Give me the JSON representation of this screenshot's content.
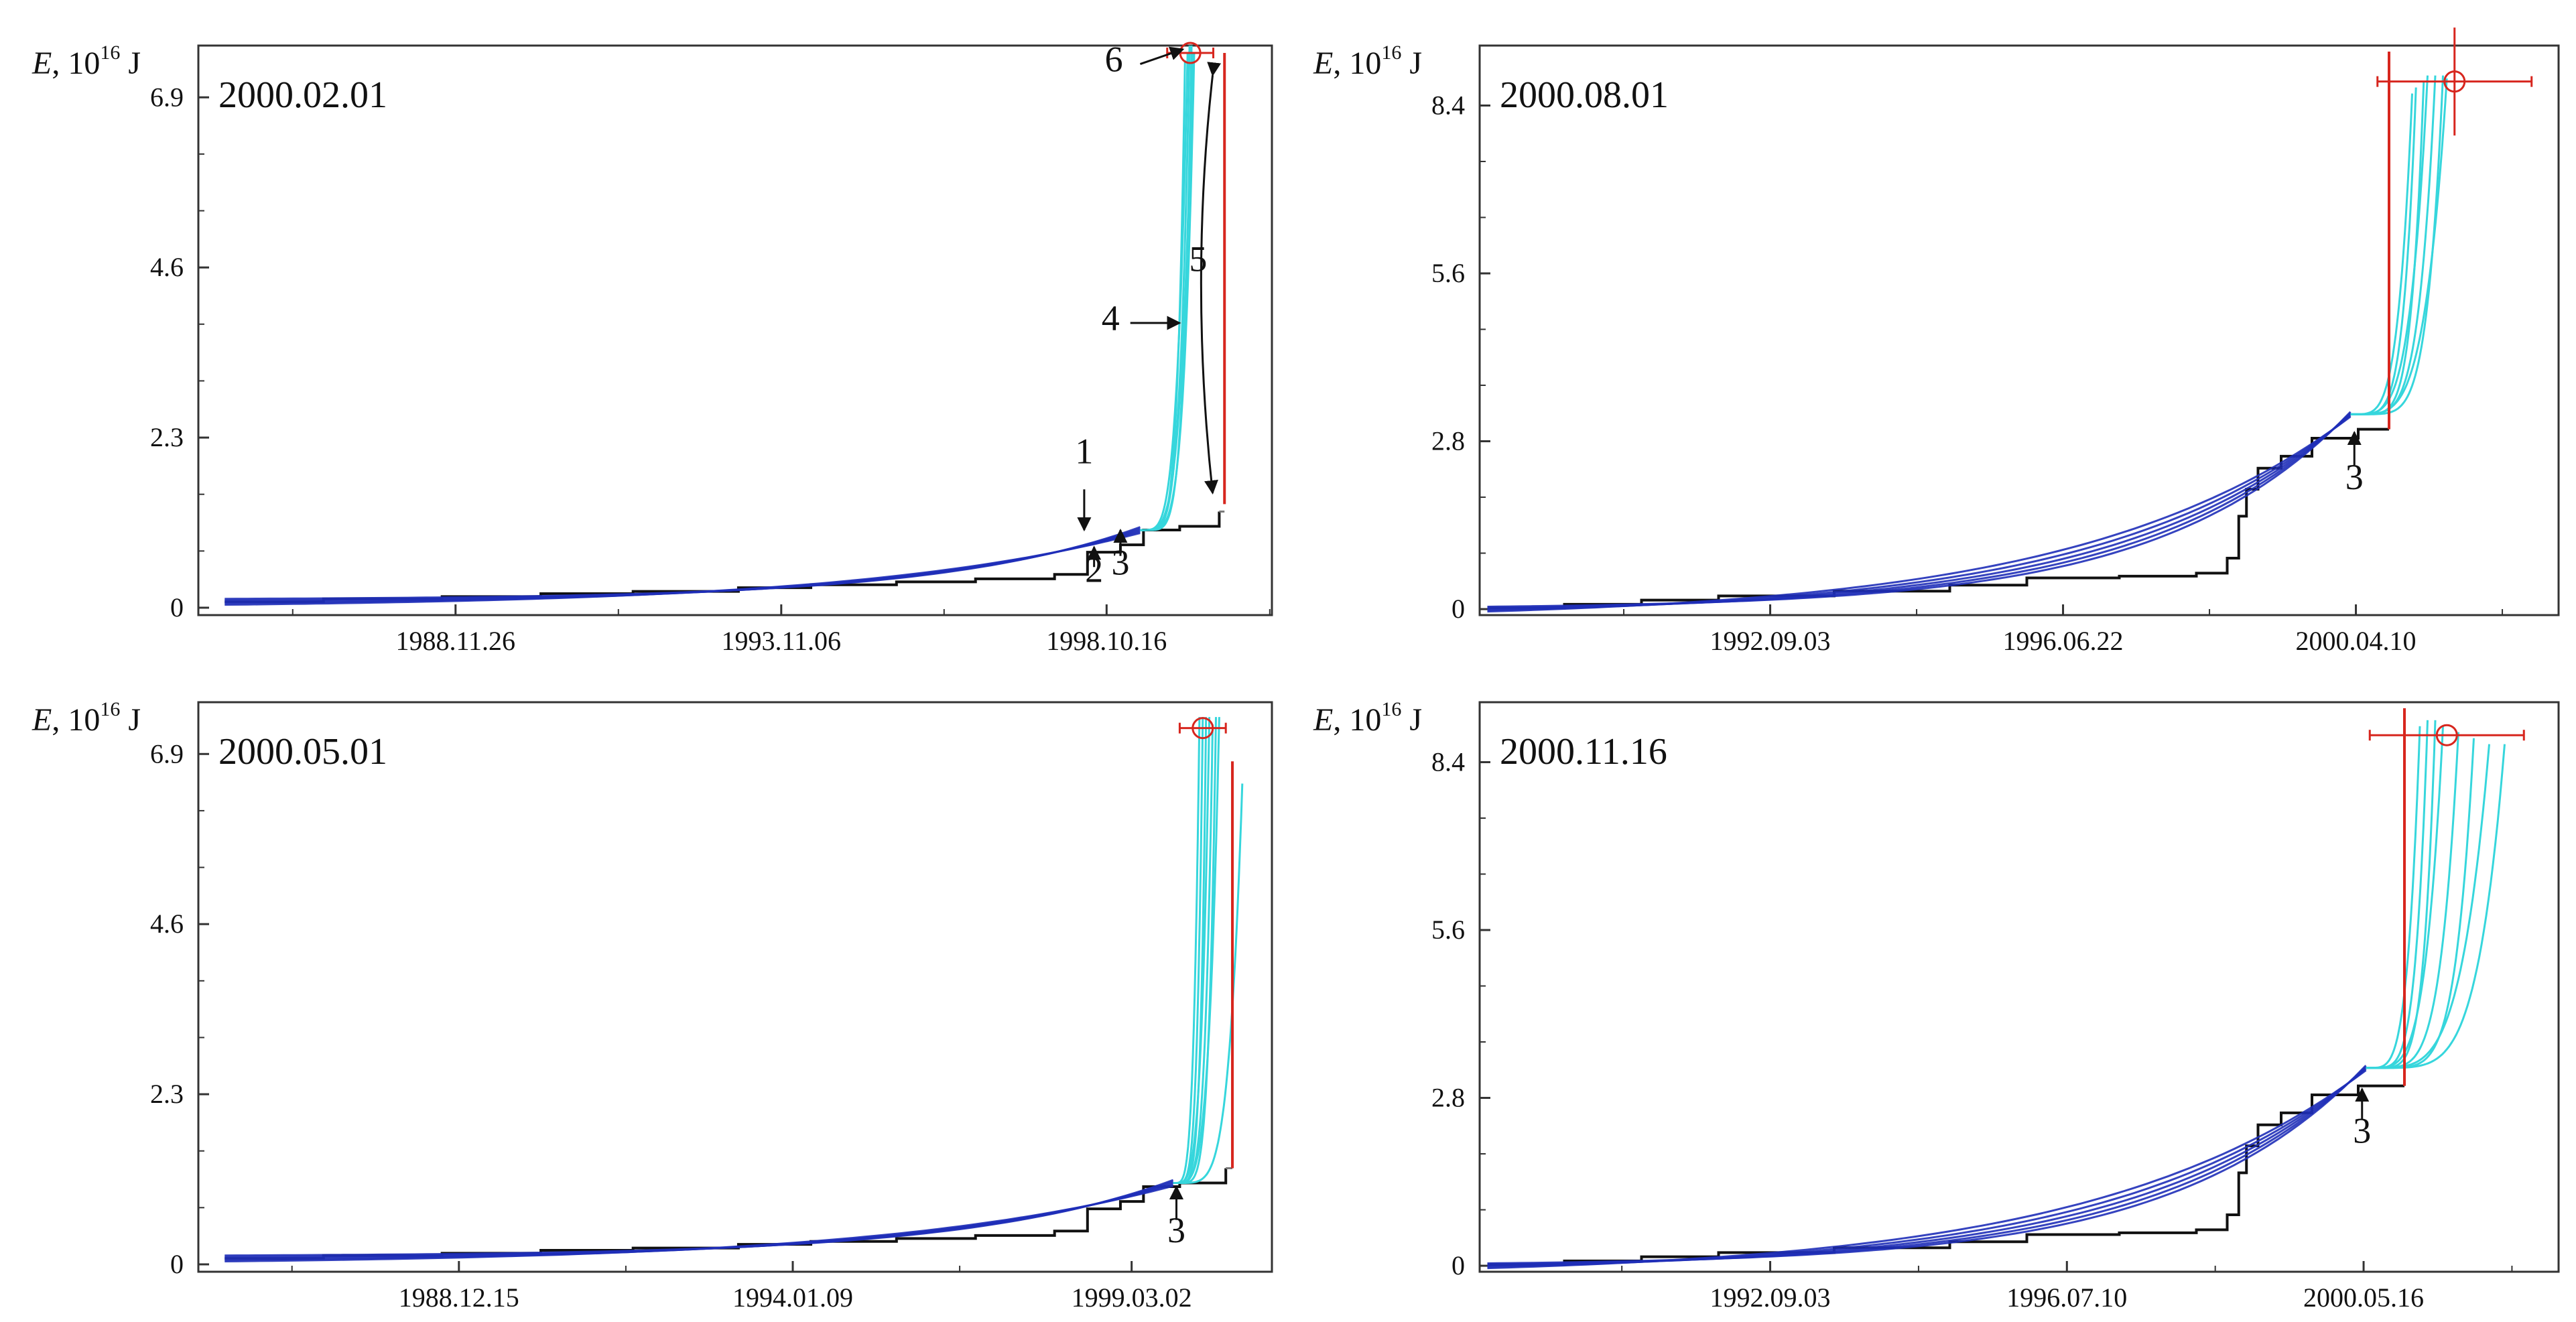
{
  "figure": {
    "description_type": "Four panels of cumulative released energy versus time with model approximation curves",
    "colors": {
      "observed": "#111111",
      "fit_early": "#1f2fb8",
      "fit_late": "#36d6dc",
      "event": "#d7261e",
      "axes": "#333333",
      "secondary_step": "#7a7a7a"
    }
  },
  "chart_data": [
    {
      "id": "p1",
      "type": "line",
      "panel_date": "2000.02.01",
      "ylabel": {
        "var": "E",
        "sep": ", ",
        "base": "10",
        "exp": "16",
        "unit": " J"
      },
      "yticks": [
        0,
        2.3,
        4.6,
        6.9
      ],
      "ytick_labels": [
        "0",
        "2.3",
        "4.6",
        "6.9"
      ],
      "ylim": [
        -0.1,
        7.6
      ],
      "xlim": [
        1985.0,
        2001.3
      ],
      "xticks": [
        1988.905,
        1993.85,
        1998.79
      ],
      "xtick_labels": [
        "1988.11.26",
        "1993.11.06",
        "1998.10.16"
      ],
      "observed_steps": [
        [
          1985.4,
          0.08
        ],
        [
          1986.9,
          0.12
        ],
        [
          1988.7,
          0.15
        ],
        [
          1990.2,
          0.19
        ],
        [
          1991.6,
          0.22
        ],
        [
          1993.2,
          0.27
        ],
        [
          1994.3,
          0.31
        ],
        [
          1995.6,
          0.35
        ],
        [
          1996.8,
          0.39
        ],
        [
          1998.0,
          0.45
        ],
        [
          1998.5,
          0.75
        ],
        [
          1999.0,
          0.85
        ],
        [
          1999.35,
          1.05
        ],
        [
          1999.9,
          1.1
        ],
        [
          2000.5,
          1.3
        ]
      ],
      "fit_start": 1985.4,
      "fit_end": 1999.3,
      "fit_start_value": 0.08,
      "fit_end_value": 1.05,
      "projections": [
        {
          "t_end": 2000.02,
          "e_end": 7.5
        },
        {
          "t_end": 2000.05,
          "e_end": 7.6
        },
        {
          "t_end": 2000.08,
          "e_end": 7.6
        },
        {
          "t_end": 2000.1,
          "e_end": 7.5
        },
        {
          "t_end": 2000.12,
          "e_end": 7.5
        },
        {
          "t_end": 1999.98,
          "e_end": 7.4
        }
      ],
      "event": {
        "t": 2000.06,
        "e": 7.5,
        "t_err": 0.35,
        "e_err": 0,
        "red_line_t": 2000.58,
        "red_line_top": 7.5,
        "red_line_bottom": 1.4
      },
      "annotations": [
        {
          "label": "1",
          "tx": 1998.45,
          "ty": 1.95,
          "ax": 1998.45,
          "ay": 1.6,
          "bx": 1998.45,
          "by": 1.05
        },
        {
          "label": "2",
          "tx": 1998.6,
          "ty": 0.35,
          "ax": 1998.6,
          "ay": 0.55,
          "bx": 1998.6,
          "by": 0.82
        },
        {
          "label": "3",
          "tx": 1999.0,
          "ty": 0.45,
          "ax": 1999.0,
          "ay": 0.7,
          "bx": 1999.0,
          "by": 1.05
        },
        {
          "label": "4",
          "tx": 1998.85,
          "ty": 3.75,
          "ax": 1999.15,
          "ay": 3.85,
          "bx": 1999.9,
          "by": 3.85
        },
        {
          "label": "5",
          "tx": 2000.18,
          "ty": 4.55,
          "ax": null,
          "ay": null,
          "bx": null,
          "by": null
        },
        {
          "label": "6",
          "tx": 1998.9,
          "ty": 7.25,
          "ax": 1999.3,
          "ay": 7.35,
          "bx": 1999.95,
          "by": 7.55
        }
      ]
    },
    {
      "id": "p2",
      "type": "line",
      "panel_date": "2000.08.01",
      "ylabel": {
        "var": "E",
        "sep": ", ",
        "base": "10",
        "exp": "16",
        "unit": " J"
      },
      "yticks": [
        0,
        2.8,
        5.6,
        8.4
      ],
      "ytick_labels": [
        "0",
        "2.8",
        "5.6",
        "8.4"
      ],
      "ylim": [
        -0.1,
        9.4
      ],
      "xlim": [
        1988.9,
        2002.9
      ],
      "xticks": [
        1992.67,
        1996.47,
        2000.27
      ],
      "xtick_labels": [
        "1992.09.03",
        "1996.06.22",
        "2000.04.10"
      ],
      "observed_steps": [
        [
          1989.0,
          0.02
        ],
        [
          1990.0,
          0.08
        ],
        [
          1991.0,
          0.15
        ],
        [
          1992.0,
          0.22
        ],
        [
          1993.5,
          0.3
        ],
        [
          1995.0,
          0.4
        ],
        [
          1996.0,
          0.52
        ],
        [
          1997.2,
          0.55
        ],
        [
          1998.2,
          0.6
        ],
        [
          1998.6,
          0.85
        ],
        [
          1998.75,
          1.55
        ],
        [
          1998.85,
          2.0
        ],
        [
          1999.0,
          2.35
        ],
        [
          1999.3,
          2.55
        ],
        [
          1999.7,
          2.85
        ],
        [
          2000.3,
          3.0
        ],
        [
          2000.7,
          3.0
        ]
      ],
      "fit_start": 1989.0,
      "fit_end": 2000.2,
      "fit_start_value": 0.0,
      "fit_end_value": 3.25,
      "projections": [
        {
          "t_end": 2001.0,
          "e_end": 8.6
        },
        {
          "t_end": 2001.05,
          "e_end": 8.7
        },
        {
          "t_end": 2001.15,
          "e_end": 8.8
        },
        {
          "t_end": 2001.2,
          "e_end": 8.9
        },
        {
          "t_end": 2001.3,
          "e_end": 8.9
        },
        {
          "t_end": 2001.4,
          "e_end": 8.9
        },
        {
          "t_end": 2001.45,
          "e_end": 8.85
        }
      ],
      "event": {
        "t": 2001.55,
        "e": 8.8,
        "t_err": 1.0,
        "e_err": 0.9,
        "red_line_t": 2000.7,
        "red_line_top": 9.3,
        "red_line_bottom": 3.0
      },
      "annotations": [
        {
          "label": "3",
          "tx": 2000.25,
          "ty": 2.0,
          "ax": 2000.25,
          "ay": 2.4,
          "bx": 2000.25,
          "by": 2.95
        }
      ]
    },
    {
      "id": "p3",
      "type": "line",
      "panel_date": "2000.05.01",
      "ylabel": {
        "var": "E",
        "sep": ", ",
        "base": "10",
        "exp": "16",
        "unit": " J"
      },
      "yticks": [
        0,
        2.3,
        4.6,
        6.9
      ],
      "ytick_labels": [
        "0",
        "2.3",
        "4.6",
        "6.9"
      ],
      "ylim": [
        -0.1,
        7.6
      ],
      "xlim": [
        1985.0,
        2001.3
      ],
      "xticks": [
        1988.956,
        1994.025,
        1999.17
      ],
      "xtick_labels": [
        "1988.12.15",
        "1994.01.09",
        "1999.03.02"
      ],
      "observed_steps": [
        [
          1985.4,
          0.08
        ],
        [
          1986.9,
          0.12
        ],
        [
          1988.7,
          0.15
        ],
        [
          1990.2,
          0.19
        ],
        [
          1991.6,
          0.22
        ],
        [
          1993.2,
          0.27
        ],
        [
          1994.3,
          0.31
        ],
        [
          1995.6,
          0.35
        ],
        [
          1996.8,
          0.39
        ],
        [
          1998.0,
          0.45
        ],
        [
          1998.5,
          0.75
        ],
        [
          1999.0,
          0.85
        ],
        [
          1999.35,
          1.05
        ],
        [
          1999.9,
          1.1
        ],
        [
          2000.6,
          1.3
        ]
      ],
      "fit_start": 1985.4,
      "fit_end": 1999.8,
      "fit_start_value": 0.08,
      "fit_end_value": 1.1,
      "projections": [
        {
          "t_end": 2000.2,
          "e_end": 7.4
        },
        {
          "t_end": 2000.25,
          "e_end": 7.4
        },
        {
          "t_end": 2000.3,
          "e_end": 7.4
        },
        {
          "t_end": 2000.35,
          "e_end": 7.4
        },
        {
          "t_end": 2000.4,
          "e_end": 7.3
        },
        {
          "t_end": 2000.45,
          "e_end": 7.4
        },
        {
          "t_end": 2000.5,
          "e_end": 7.4
        },
        {
          "t_end": 2000.85,
          "e_end": 6.5
        }
      ],
      "event": {
        "t": 2000.25,
        "e": 7.25,
        "t_err": 0.35,
        "e_err": 0,
        "red_line_t": 2000.7,
        "red_line_top": 6.8,
        "red_line_bottom": 1.3
      },
      "annotations": [
        {
          "label": "3",
          "tx": 1999.85,
          "ty": 0.3,
          "ax": 1999.85,
          "ay": 0.6,
          "bx": 1999.85,
          "by": 1.05
        }
      ]
    },
    {
      "id": "p4",
      "type": "line",
      "panel_date": "2000.11.16",
      "ylabel": {
        "var": "E",
        "sep": ", ",
        "base": "10",
        "exp": "16",
        "unit": " J"
      },
      "yticks": [
        0,
        2.8,
        5.6,
        8.4
      ],
      "ytick_labels": [
        "0",
        "2.8",
        "5.6",
        "8.4"
      ],
      "ylim": [
        -0.1,
        9.4
      ],
      "xlim": [
        1988.9,
        2002.9
      ],
      "xticks": [
        1992.67,
        1996.52,
        2000.37
      ],
      "xtick_labels": [
        "1992.09.03",
        "1996.07.10",
        "2000.05.16"
      ],
      "observed_steps": [
        [
          1989.0,
          0.02
        ],
        [
          1990.0,
          0.08
        ],
        [
          1991.0,
          0.15
        ],
        [
          1992.0,
          0.22
        ],
        [
          1993.5,
          0.3
        ],
        [
          1995.0,
          0.4
        ],
        [
          1996.0,
          0.52
        ],
        [
          1997.2,
          0.55
        ],
        [
          1998.2,
          0.6
        ],
        [
          1998.6,
          0.85
        ],
        [
          1998.75,
          1.55
        ],
        [
          1998.85,
          2.0
        ],
        [
          1999.0,
          2.35
        ],
        [
          1999.3,
          2.55
        ],
        [
          1999.7,
          2.85
        ],
        [
          2000.3,
          3.0
        ],
        [
          2000.9,
          3.0
        ]
      ],
      "fit_start": 1989.0,
      "fit_end": 2000.4,
      "fit_start_value": 0.0,
      "fit_end_value": 3.3,
      "projections": [
        {
          "t_end": 2001.1,
          "e_end": 9.0
        },
        {
          "t_end": 2001.2,
          "e_end": 9.1
        },
        {
          "t_end": 2001.3,
          "e_end": 9.1
        },
        {
          "t_end": 2001.4,
          "e_end": 9.0
        },
        {
          "t_end": 2001.6,
          "e_end": 8.9
        },
        {
          "t_end": 2001.8,
          "e_end": 8.8
        },
        {
          "t_end": 2002.0,
          "e_end": 8.7
        },
        {
          "t_end": 2002.2,
          "e_end": 8.7
        }
      ],
      "event": {
        "t": 2001.45,
        "e": 8.85,
        "t_err": 1.0,
        "e_err": 0,
        "red_line_t": 2000.9,
        "red_line_top": 9.3,
        "red_line_bottom": 3.0
      },
      "annotations": [
        {
          "label": "3",
          "tx": 2000.35,
          "ty": 2.05,
          "ax": 2000.35,
          "ay": 2.45,
          "bx": 2000.35,
          "by": 2.95
        }
      ]
    }
  ]
}
